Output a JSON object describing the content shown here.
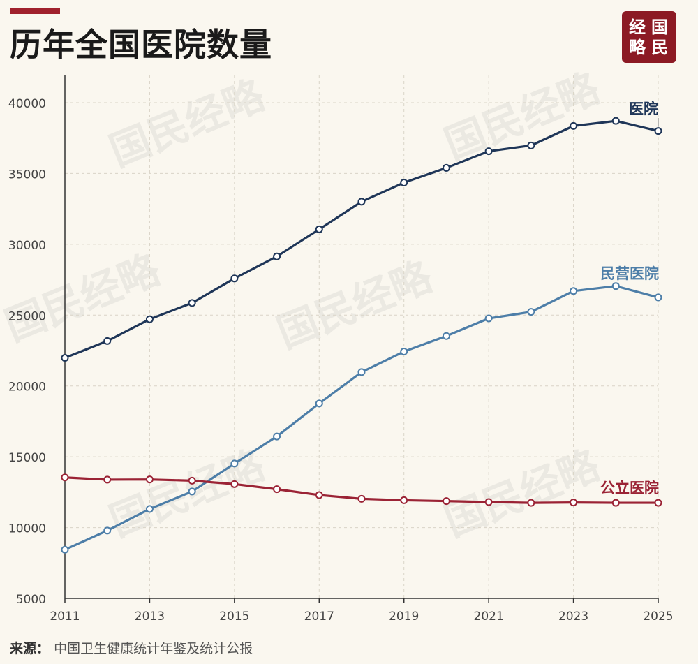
{
  "title": "历年全国医院数量",
  "logo": {
    "chars": [
      "经",
      "国",
      "略",
      "民"
    ],
    "color": "#8c1a24"
  },
  "watermark": "国民经略",
  "source": {
    "label": "来源：",
    "text": "中国卫生健康统计年鉴及统计公报"
  },
  "chart_data": {
    "type": "line",
    "title": "历年全国医院数量",
    "xlabel": "",
    "ylabel": "",
    "x": [
      2011,
      2012,
      2013,
      2014,
      2015,
      2016,
      2017,
      2018,
      2019,
      2020,
      2021,
      2022,
      2023,
      2024,
      2025
    ],
    "xticks": [
      "2011",
      "2013",
      "2015",
      "2017",
      "2019",
      "2021",
      "2023",
      "2025"
    ],
    "yticks": [
      5000,
      10000,
      15000,
      20000,
      25000,
      30000,
      35000,
      40000
    ],
    "ylim": [
      5000,
      42000
    ],
    "grid": true,
    "legend": "direct-labels-right",
    "series": [
      {
        "name": "医院",
        "color": "#1f3658",
        "values": [
          21980,
          23170,
          24709,
          25860,
          27587,
          29140,
          31056,
          33009,
          34354,
          35394,
          36570,
          36976,
          38355,
          38710,
          38000
        ]
      },
      {
        "name": "民营医院",
        "color": "#4d7ea8",
        "values": [
          8440,
          9786,
          11313,
          12546,
          14518,
          16432,
          18759,
          20977,
          22424,
          23524,
          24766,
          25230,
          26700,
          27050,
          26250
        ]
      },
      {
        "name": "公立医院",
        "color": "#9b2335",
        "values": [
          13539,
          13384,
          13396,
          13314,
          13069,
          12708,
          12297,
          12032,
          11930,
          11870,
          11804,
          11746,
          11772,
          11750,
          11750
        ]
      }
    ]
  }
}
